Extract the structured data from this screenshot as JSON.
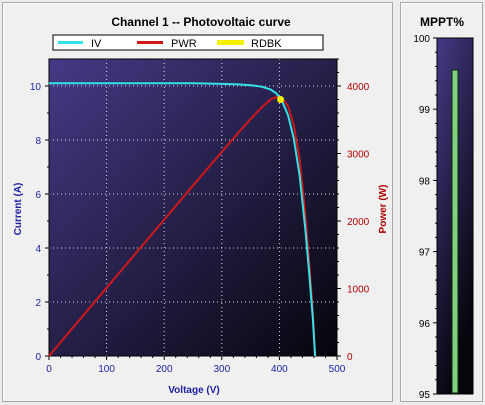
{
  "window": {
    "main_title": "Channel 1 -- Photovoltaic curve",
    "mppt_title": "MPPT%"
  },
  "colors": {
    "iv": "#33e3e8",
    "pwr": "#d01818",
    "rdbk": "#f4f000",
    "mppt_bar": "#7fd07f",
    "plot_bg_light": "#453a86",
    "plot_bg_dark": "#05050b",
    "left_axis": "#1e22a0",
    "right_axis": "#b00000"
  },
  "chart_data": [
    {
      "type": "line",
      "title": "Channel 1 -- Photovoltaic curve",
      "xlabel": "Voltage (V)",
      "ylabel": "Current (A)",
      "y2label": "Power (W)",
      "xlim": [
        0,
        500
      ],
      "ylim": [
        0,
        11
      ],
      "y2lim": [
        0,
        4400
      ],
      "xticks": [
        0,
        100,
        200,
        300,
        400,
        500
      ],
      "yticks": [
        0,
        2,
        4,
        6,
        8,
        10
      ],
      "y2ticks": [
        0,
        1000,
        2000,
        3000,
        4000
      ],
      "grid": true,
      "legend": "top",
      "series": [
        {
          "name": "IV",
          "axis": "left",
          "x": [
            0,
            50,
            100,
            150,
            200,
            250,
            300,
            330,
            350,
            370,
            385,
            395,
            405,
            415,
            425,
            435,
            445,
            452,
            458,
            462
          ],
          "y": [
            10.1,
            10.1,
            10.1,
            10.1,
            10.1,
            10.1,
            10.08,
            10.06,
            10.03,
            9.97,
            9.87,
            9.72,
            9.42,
            8.92,
            8.05,
            6.7,
            4.7,
            3.0,
            1.4,
            0.0
          ]
        },
        {
          "name": "PWR",
          "axis": "right",
          "x": [
            0,
            50,
            100,
            150,
            200,
            250,
            300,
            330,
            350,
            370,
            385,
            395,
            405,
            415,
            425,
            435,
            445,
            452,
            458,
            462
          ],
          "y": [
            0,
            505,
            1010,
            1515,
            2020,
            2525,
            3024,
            3320,
            3511,
            3689,
            3800,
            3839,
            3815,
            3702,
            3421,
            2914,
            2092,
            1356,
            641,
            0
          ]
        },
        {
          "name": "RDBK",
          "axis": "left",
          "x": [
            402
          ],
          "y": [
            9.5
          ]
        }
      ]
    },
    {
      "type": "bar",
      "title": "MPPT%",
      "ylim": [
        95,
        100
      ],
      "yticks": [
        95,
        96,
        97,
        98,
        99,
        100
      ],
      "values": [
        99.55
      ]
    }
  ]
}
